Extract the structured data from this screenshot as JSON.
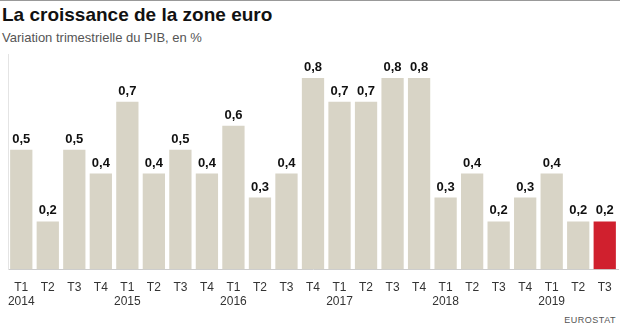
{
  "chart_data": {
    "type": "bar",
    "title": "La croissance de la zone euro",
    "subtitle": "Variation trimestrielle du PIB, en %",
    "source": "EUROSTAT",
    "categories": [
      "T1 2014",
      "T2",
      "T3",
      "T4",
      "T1 2015",
      "T2",
      "T3",
      "T4",
      "T1 2016",
      "T2",
      "T3",
      "T4",
      "T1 2017",
      "T2",
      "T3",
      "T4",
      "T1 2018",
      "T2",
      "T3",
      "T4",
      "T1 2019",
      "T2",
      "T3"
    ],
    "values": [
      0.5,
      0.2,
      0.5,
      0.4,
      0.7,
      0.4,
      0.5,
      0.4,
      0.6,
      0.3,
      0.4,
      0.8,
      0.7,
      0.7,
      0.8,
      0.8,
      0.3,
      0.4,
      0.2,
      0.3,
      0.4,
      0.2,
      0.2
    ],
    "value_labels": [
      "0,5",
      "0,2",
      "0,5",
      "0,4",
      "0,7",
      "0,4",
      "0,5",
      "0,4",
      "0,6",
      "0,3",
      "0,4",
      "0,8",
      "0,7",
      "0,7",
      "0,8",
      "0,8",
      "0,3",
      "0,4",
      "0,2",
      "0,3",
      "0,4",
      "0,2",
      "0,2"
    ],
    "colors": [
      "#d8d4c6",
      "#d8d4c6",
      "#d8d4c6",
      "#d8d4c6",
      "#d8d4c6",
      "#d8d4c6",
      "#d8d4c6",
      "#d8d4c6",
      "#d8d4c6",
      "#d8d4c6",
      "#d8d4c6",
      "#d8d4c6",
      "#d8d4c6",
      "#d8d4c6",
      "#d8d4c6",
      "#d8d4c6",
      "#d8d4c6",
      "#d8d4c6",
      "#d8d4c6",
      "#d8d4c6",
      "#d8d4c6",
      "#d8d4c6",
      "#d0202e"
    ],
    "ylim": [
      0,
      0.9
    ],
    "grid": false,
    "data_labels": true,
    "tick_labels": "x"
  }
}
